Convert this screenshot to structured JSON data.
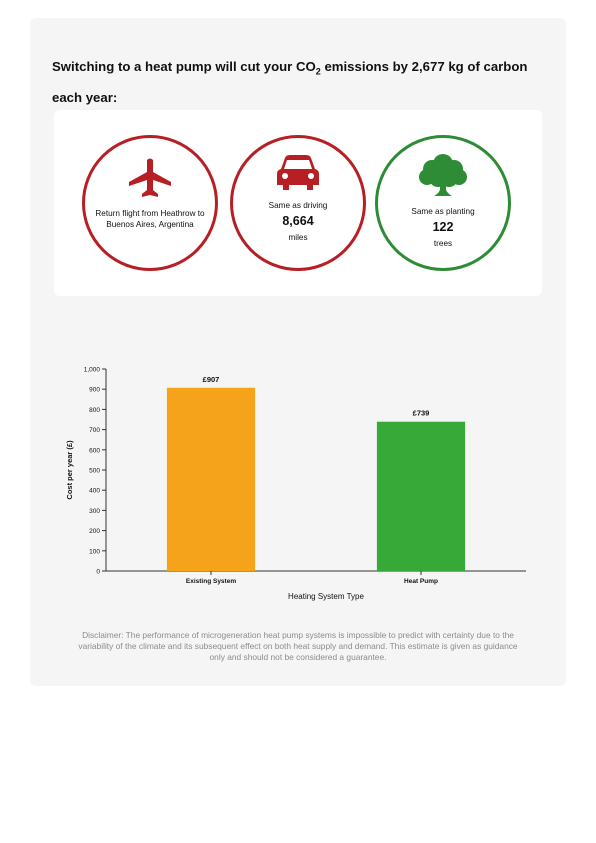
{
  "headline": {
    "prefix": "Switching to a heat pump will cut your CO",
    "subscript": "2",
    "suffix": " emissions by 2,677 kg of carbon each year:"
  },
  "impact": {
    "flight": {
      "icon": "airplane-icon",
      "text": "Return flight from Heathrow to Buenos Aires, Argentina",
      "color": "#b81f24"
    },
    "driving": {
      "icon": "car-icon",
      "label": "Same as driving",
      "value": "8,664",
      "unit": "miles",
      "color": "#b81f24"
    },
    "trees": {
      "icon": "tree-icon",
      "label": "Same as planting",
      "value": "122",
      "unit": "trees",
      "color": "#2e8b36"
    }
  },
  "chart_data": {
    "type": "bar",
    "categories": [
      "Existing System",
      "Heat Pump"
    ],
    "values": [
      907,
      739
    ],
    "data_labels": [
      "£907",
      "£739"
    ],
    "colors": [
      "#f5a31a",
      "#36a938"
    ],
    "xlabel": "Heating System Type",
    "ylabel": "Cost per year (£)",
    "ylim": [
      0,
      1000
    ],
    "yticks": [
      0,
      100,
      200,
      300,
      400,
      500,
      600,
      700,
      800,
      900,
      1000
    ],
    "ytick_labels": [
      "0",
      "100",
      "200",
      "300",
      "400",
      "500",
      "600",
      "700",
      "800",
      "900",
      "1,000"
    ],
    "grid": false
  },
  "disclaimer": {
    "lines": [
      "Disclaimer: The performance of microgeneration heat pump systems is impossible to predict with certainty due to the",
      "variability of the climate and its subsequent effect on both heat supply and demand. This estimate is given as guidance",
      "only and should not be considered a guarantee."
    ]
  }
}
